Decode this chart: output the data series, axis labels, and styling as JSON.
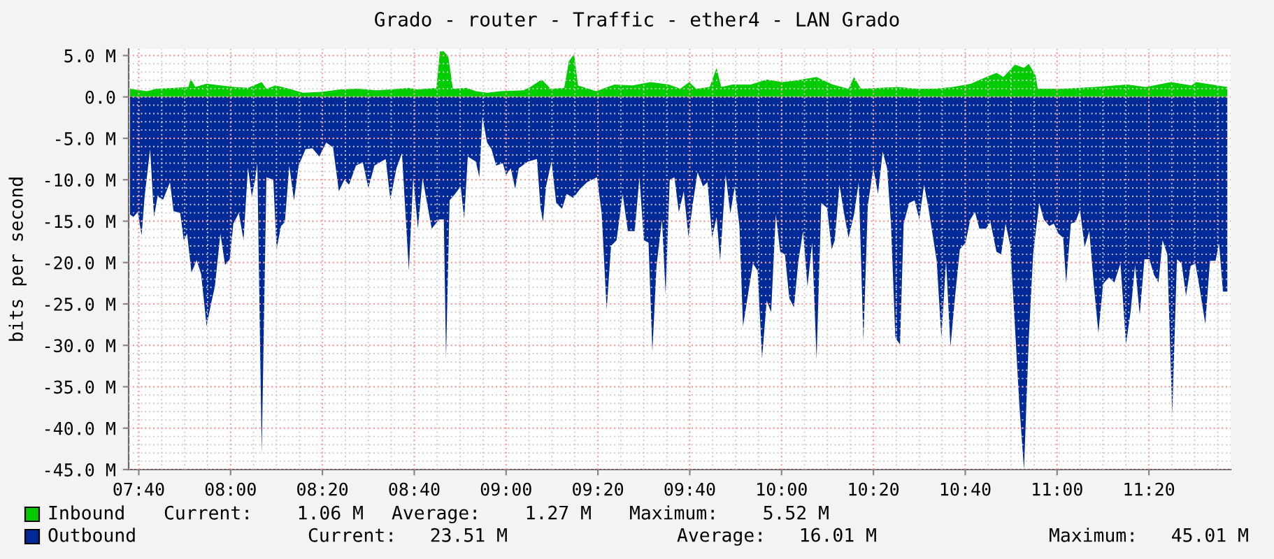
{
  "chart_data": {
    "type": "area",
    "title": "Grado - router - Traffic - ether4 - LAN Grado",
    "ylabel": "bits per second",
    "xlim": [
      7.63,
      11.63
    ],
    "ylim": [
      -45,
      5.8
    ],
    "xticks": [
      {
        "value": 7.6667,
        "label": "07:40"
      },
      {
        "value": 8.0,
        "label": "08:00"
      },
      {
        "value": 8.3333,
        "label": "08:20"
      },
      {
        "value": 8.6667,
        "label": "08:40"
      },
      {
        "value": 9.0,
        "label": "09:00"
      },
      {
        "value": 9.3333,
        "label": "09:20"
      },
      {
        "value": 9.6667,
        "label": "09:40"
      },
      {
        "value": 10.0,
        "label": "10:00"
      },
      {
        "value": 10.3333,
        "label": "10:20"
      },
      {
        "value": 10.6667,
        "label": "10:40"
      },
      {
        "value": 11.0,
        "label": "11:00"
      },
      {
        "value": 11.3333,
        "label": "11:20"
      }
    ],
    "yticks": [
      {
        "value": 5,
        "label": "5.0 M"
      },
      {
        "value": 0,
        "label": "0.0"
      },
      {
        "value": -5,
        "label": "-5.0 M"
      },
      {
        "value": -10,
        "label": "-10.0 M"
      },
      {
        "value": -15,
        "label": "-15.0 M"
      },
      {
        "value": -20,
        "label": "-20.0 M"
      },
      {
        "value": -25,
        "label": "-25.0 M"
      },
      {
        "value": -30,
        "label": "-30.0 M"
      },
      {
        "value": -35,
        "label": "-35.0 M"
      },
      {
        "value": -40,
        "label": "-40.0 M"
      },
      {
        "value": -45,
        "label": "-45.0 M"
      }
    ],
    "grid": true,
    "legend": "bottom",
    "series": [
      {
        "name": "Inbound",
        "color": "#00cc00",
        "x": [
          7.635,
          7.697,
          7.73,
          7.797,
          7.847,
          7.855,
          7.872,
          7.913,
          7.963,
          8.013,
          8.063,
          8.113,
          8.13,
          8.163,
          8.213,
          8.263,
          8.33,
          8.397,
          8.463,
          8.53,
          8.58,
          8.647,
          8.68,
          8.747,
          8.76,
          8.774,
          8.79,
          8.807,
          8.857,
          8.89,
          8.931,
          8.98,
          9.063,
          9.088,
          9.129,
          9.162,
          9.211,
          9.228,
          9.247,
          9.261,
          9.327,
          9.393,
          9.459,
          9.525,
          9.591,
          9.632,
          9.665,
          9.69,
          9.739,
          9.764,
          9.781,
          9.822,
          9.888,
          9.946,
          10.003,
          10.053,
          10.127,
          10.185,
          10.243,
          10.263,
          10.288,
          10.355,
          10.422,
          10.488,
          10.555,
          10.622,
          10.688,
          10.722,
          10.78,
          10.805,
          10.847,
          10.88,
          10.897,
          10.922,
          10.93,
          11.022,
          11.138,
          11.255,
          11.322,
          11.413,
          11.488,
          11.505,
          11.618
        ],
        "values": [
          1.0,
          0.7,
          1.0,
          1.1,
          1.2,
          2.2,
          1.2,
          1.6,
          1.4,
          1.2,
          1.1,
          1.8,
          1.0,
          1.4,
          1.0,
          0.5,
          0.6,
          0.9,
          1.0,
          0.8,
          0.9,
          1.1,
          0.9,
          1.1,
          5.5,
          5.5,
          4.9,
          1.0,
          1.1,
          0.7,
          0.5,
          0.7,
          0.8,
          1.2,
          2.1,
          1.0,
          1.1,
          4.3,
          5.2,
          1.4,
          0.7,
          1.5,
          1.4,
          1.8,
          1.5,
          1.0,
          1.8,
          1.0,
          1.2,
          3.5,
          1.2,
          1.5,
          1.5,
          2.1,
          1.8,
          2.0,
          2.4,
          1.5,
          1.0,
          2.4,
          1.0,
          1.1,
          1.2,
          1.0,
          1.0,
          1.2,
          1.6,
          2.1,
          2.9,
          2.4,
          3.9,
          3.5,
          4.0,
          2.6,
          1.0,
          1.0,
          1.2,
          1.5,
          1.2,
          1.8,
          1.4,
          1.8,
          1.2
        ]
      },
      {
        "name": "Outbound",
        "color": "#002a97",
        "x": [
          7.635,
          7.647,
          7.663,
          7.677,
          7.688,
          7.708,
          7.722,
          7.735,
          7.755,
          7.78,
          7.793,
          7.817,
          7.83,
          7.842,
          7.858,
          7.877,
          7.893,
          7.913,
          7.927,
          7.943,
          7.963,
          7.98,
          7.997,
          8.01,
          8.03,
          8.047,
          8.063,
          8.077,
          8.088,
          8.097,
          8.113,
          8.13,
          8.155,
          8.167,
          8.183,
          8.197,
          8.213,
          8.23,
          8.247,
          8.272,
          8.297,
          8.322,
          8.347,
          8.372,
          8.393,
          8.413,
          8.43,
          8.455,
          8.48,
          8.5,
          8.522,
          8.547,
          8.563,
          8.58,
          8.602,
          8.622,
          8.647,
          8.663,
          8.68,
          8.697,
          8.713,
          8.73,
          8.757,
          8.774,
          8.782,
          8.795,
          8.815,
          8.835,
          8.848,
          8.861,
          8.89,
          8.903,
          8.914,
          8.931,
          8.947,
          8.964,
          8.988,
          9.0,
          9.017,
          9.033,
          9.046,
          9.079,
          9.112,
          9.125,
          9.134,
          9.145,
          9.165,
          9.182,
          9.203,
          9.22,
          9.244,
          9.269,
          9.294,
          9.33,
          9.347,
          9.365,
          9.381,
          9.401,
          9.423,
          9.442,
          9.467,
          9.484,
          9.5,
          9.517,
          9.531,
          9.546,
          9.566,
          9.579,
          9.594,
          9.611,
          9.627,
          9.645,
          9.662,
          9.678,
          9.695,
          9.715,
          9.731,
          9.748,
          9.764,
          9.777,
          9.797,
          9.814,
          9.83,
          9.847,
          9.86,
          9.876,
          9.896,
          9.913,
          9.929,
          9.946,
          9.962,
          9.979,
          9.995,
          10.012,
          10.028,
          10.045,
          10.061,
          10.078,
          10.094,
          10.111,
          10.127,
          10.144,
          10.165,
          10.182,
          10.193,
          10.21,
          10.226,
          10.243,
          10.263,
          10.28,
          10.297,
          10.313,
          10.333,
          10.35,
          10.367,
          10.383,
          10.397,
          10.413,
          10.43,
          10.443,
          10.463,
          10.483,
          10.5,
          10.517,
          10.533,
          10.563,
          10.58,
          10.597,
          10.613,
          10.63,
          10.647,
          10.668,
          10.685,
          10.702,
          10.718,
          10.742,
          10.758,
          10.78,
          10.797,
          10.813,
          10.83,
          10.847,
          10.863,
          10.88,
          10.897,
          10.913,
          10.935,
          10.952,
          10.972,
          10.988,
          11.005,
          11.022,
          11.033,
          11.05,
          11.067,
          11.083,
          11.1,
          11.117,
          11.133,
          11.15,
          11.167,
          11.188,
          11.208,
          11.23,
          11.25,
          11.267,
          11.283,
          11.3,
          11.317,
          11.335,
          11.352,
          11.368,
          11.383,
          11.4,
          11.418,
          11.435,
          11.452,
          11.468,
          11.485,
          11.502,
          11.518,
          11.538,
          11.555,
          11.575,
          11.588,
          11.602,
          11.618
        ],
        "values": [
          -14.2,
          -14.5,
          -13.9,
          -16.7,
          -12,
          -6.3,
          -14.5,
          -12,
          -12.4,
          -10.3,
          -13.8,
          -14,
          -17.3,
          -16.5,
          -21.2,
          -19.7,
          -21.4,
          -27.7,
          -25.3,
          -22.9,
          -16.5,
          -20.3,
          -19.6,
          -15.3,
          -14,
          -17.3,
          -8.5,
          -12,
          -10.2,
          -8,
          -43.1,
          -9.7,
          -10,
          -18.4,
          -15.6,
          -15.1,
          -8.3,
          -12.5,
          -8.3,
          -6.3,
          -6.2,
          -7.2,
          -5.5,
          -6.1,
          -11.4,
          -10,
          -10.6,
          -8.3,
          -7.9,
          -11,
          -8.3,
          -7.8,
          -7.5,
          -12.4,
          -8.6,
          -6.8,
          -21,
          -9.7,
          -15.9,
          -9.8,
          -12.8,
          -15.9,
          -14.8,
          -14.8,
          -31.6,
          -12.5,
          -11.7,
          -10.8,
          -14.7,
          -7.2,
          -7.8,
          -9.7,
          -2.4,
          -5.5,
          -6.3,
          -8.3,
          -8,
          -9.4,
          -8.6,
          -11.1,
          -8.6,
          -7.8,
          -7.5,
          -13.4,
          -15.1,
          -10.8,
          -7.8,
          -12.8,
          -13.5,
          -11.7,
          -12.2,
          -11.1,
          -10.3,
          -9.7,
          -14.1,
          -25.7,
          -18,
          -17.3,
          -11.7,
          -16.2,
          -16.2,
          -9.7,
          -17.3,
          -17.6,
          -30.8,
          -20.4,
          -14.8,
          -23.8,
          -10,
          -9.7,
          -13.9,
          -11.4,
          -16.9,
          -12.8,
          -9.1,
          -10.8,
          -10.3,
          -17,
          -14.5,
          -19.8,
          -9.4,
          -14.1,
          -10.8,
          -15.6,
          -27.7,
          -24.3,
          -20.1,
          -21,
          -31.6,
          -24.6,
          -26,
          -14.2,
          -18.7,
          -19,
          -24.3,
          -25.4,
          -19.8,
          -16.2,
          -22.9,
          -17.6,
          -31.7,
          -12.8,
          -13.4,
          -18.4,
          -17.3,
          -10.6,
          -13.9,
          -17,
          -14.2,
          -10.3,
          -29.4,
          -13.1,
          -8.6,
          -11.7,
          -6.6,
          -8.6,
          -15.3,
          -29.1,
          -29.9,
          -15.3,
          -12.8,
          -12.5,
          -14.8,
          -10.6,
          -13.4,
          -19.8,
          -29.1,
          -19.8,
          -30.2,
          -24,
          -18.4,
          -17.6,
          -14.8,
          -13.9,
          -15.9,
          -15.9,
          -15.1,
          -18.7,
          -19,
          -15.3,
          -17.9,
          -27.7,
          -37.2,
          -45,
          -29.4,
          -19,
          -12.8,
          -14.8,
          -15.6,
          -15.3,
          -16.5,
          -17,
          -22.5,
          -15.3,
          -15.1,
          -13.6,
          -18.1,
          -16.2,
          -22.6,
          -28.5,
          -22.6,
          -21.8,
          -22.4,
          -20.1,
          -29.9,
          -25.9,
          -20.3,
          -26.3,
          -19.6,
          -19.6,
          -21.5,
          -22.4,
          -17.3,
          -19,
          -38.4,
          -19.6,
          -20.1,
          -24,
          -20.4,
          -20.1,
          -23.2,
          -27.4,
          -19.8,
          -19.8,
          -17.7,
          -23.5,
          -23.5
        ]
      }
    ],
    "annotations": [
      "Current:    1.06 M",
      "Average:    1.27 M",
      "Maximum:    5.52 M",
      "Current:   23.51 M",
      "Average:   16.01 M",
      "Maximum:   45.01 M"
    ]
  }
}
